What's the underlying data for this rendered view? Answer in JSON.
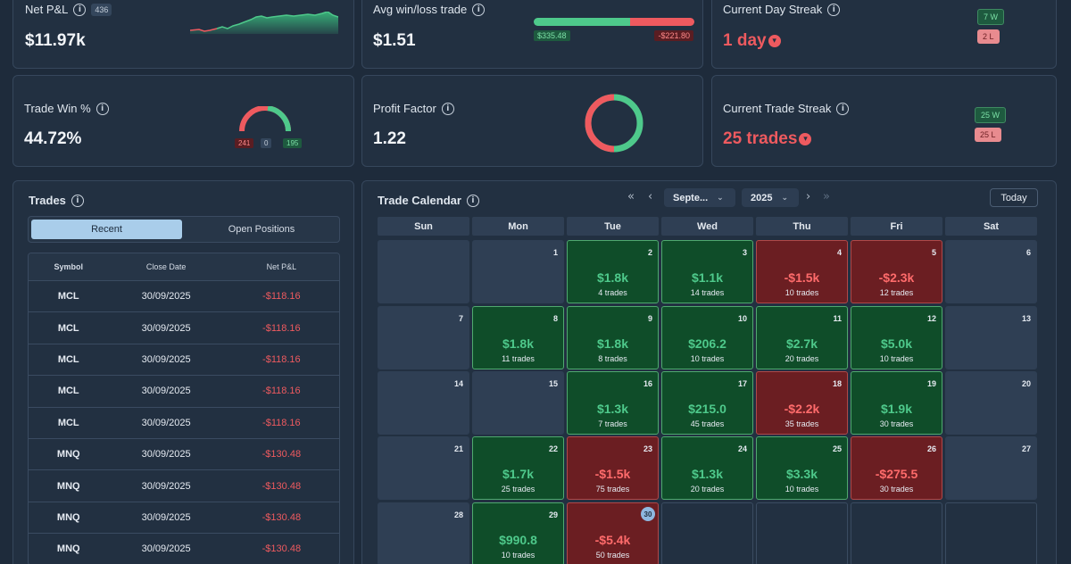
{
  "stats": {
    "net_pnl": {
      "title": "Net P&L",
      "count": "436",
      "value": "$11.97k"
    },
    "avg_winloss": {
      "title": "Avg win/loss trade",
      "value": "$1.51",
      "avg_win": "$335.48",
      "avg_loss": "-$221.80",
      "win_fraction": 0.6
    },
    "day_streak": {
      "title": "Current Day Streak",
      "value": "1 day",
      "wins": "7 W",
      "losses": "2 L"
    },
    "win_pct": {
      "title": "Trade Win %",
      "value": "44.72%",
      "losses": "241",
      "breakeven": "0",
      "wins": "195"
    },
    "profit_factor": {
      "title": "Profit Factor",
      "value": "1.22"
    },
    "trade_streak": {
      "title": "Current Trade Streak",
      "value": "25 trades",
      "wins": "25 W",
      "losses": "25 L"
    }
  },
  "trades": {
    "title": "Trades",
    "tabs": [
      "Recent",
      "Open Positions"
    ],
    "columns": [
      "Symbol",
      "Close Date",
      "Net P&L"
    ],
    "rows": [
      [
        "MCL",
        "30/09/2025",
        "-$118.16"
      ],
      [
        "MCL",
        "30/09/2025",
        "-$118.16"
      ],
      [
        "MCL",
        "30/09/2025",
        "-$118.16"
      ],
      [
        "MCL",
        "30/09/2025",
        "-$118.16"
      ],
      [
        "MCL",
        "30/09/2025",
        "-$118.16"
      ],
      [
        "MNQ",
        "30/09/2025",
        "-$130.48"
      ],
      [
        "MNQ",
        "30/09/2025",
        "-$130.48"
      ],
      [
        "MNQ",
        "30/09/2025",
        "-$130.48"
      ],
      [
        "MNQ",
        "30/09/2025",
        "-$130.48"
      ]
    ]
  },
  "calendar": {
    "title": "Trade Calendar",
    "month": "Septe...",
    "year": "2025",
    "today_label": "Today",
    "weekdays": [
      "Sun",
      "Mon",
      "Tue",
      "Wed",
      "Thu",
      "Fri",
      "Sat"
    ],
    "current_day": "30",
    "weeks": [
      [
        {
          "d": ""
        },
        {
          "d": "1"
        },
        {
          "d": "2",
          "p": "$1.8k",
          "t": "4 trades",
          "s": "pos"
        },
        {
          "d": "3",
          "p": "$1.1k",
          "t": "14 trades",
          "s": "pos"
        },
        {
          "d": "4",
          "p": "-$1.5k",
          "t": "10 trades",
          "s": "neg"
        },
        {
          "d": "5",
          "p": "-$2.3k",
          "t": "12 trades",
          "s": "neg"
        },
        {
          "d": "6"
        }
      ],
      [
        {
          "d": "7"
        },
        {
          "d": "8",
          "p": "$1.8k",
          "t": "11 trades",
          "s": "pos"
        },
        {
          "d": "9",
          "p": "$1.8k",
          "t": "8 trades",
          "s": "pos"
        },
        {
          "d": "10",
          "p": "$206.2",
          "t": "10 trades",
          "s": "pos"
        },
        {
          "d": "11",
          "p": "$2.7k",
          "t": "20 trades",
          "s": "pos"
        },
        {
          "d": "12",
          "p": "$5.0k",
          "t": "10 trades",
          "s": "pos"
        },
        {
          "d": "13"
        }
      ],
      [
        {
          "d": "14"
        },
        {
          "d": "15"
        },
        {
          "d": "16",
          "p": "$1.3k",
          "t": "7 trades",
          "s": "pos"
        },
        {
          "d": "17",
          "p": "$215.0",
          "t": "45 trades",
          "s": "pos"
        },
        {
          "d": "18",
          "p": "-$2.2k",
          "t": "35 trades",
          "s": "neg"
        },
        {
          "d": "19",
          "p": "$1.9k",
          "t": "30 trades",
          "s": "pos"
        },
        {
          "d": "20"
        }
      ],
      [
        {
          "d": "21"
        },
        {
          "d": "22",
          "p": "$1.7k",
          "t": "25 trades",
          "s": "pos"
        },
        {
          "d": "23",
          "p": "-$1.5k",
          "t": "75 trades",
          "s": "neg"
        },
        {
          "d": "24",
          "p": "$1.3k",
          "t": "20 trades",
          "s": "pos"
        },
        {
          "d": "25",
          "p": "$3.3k",
          "t": "10 trades",
          "s": "pos"
        },
        {
          "d": "26",
          "p": "-$275.5",
          "t": "30 trades",
          "s": "neg"
        },
        {
          "d": "27"
        }
      ],
      [
        {
          "d": "28"
        },
        {
          "d": "29",
          "p": "$990.8",
          "t": "10 trades",
          "s": "pos"
        },
        {
          "d": "30",
          "p": "-$5.4k",
          "t": "50 trades",
          "s": "neg"
        },
        {
          "d": "",
          "s": "empty"
        },
        {
          "d": "",
          "s": "empty"
        },
        {
          "d": "",
          "s": "empty"
        },
        {
          "d": "",
          "s": "empty"
        }
      ]
    ]
  },
  "colors": {
    "positive": "#4ec98b",
    "negative": "#ee5a5f",
    "background": "#1e2b3b",
    "card": "#223041"
  },
  "icons": [
    "info-icon",
    "arrow-down-circle-icon",
    "double-chevron-left-icon",
    "chevron-left-icon",
    "chevron-right-icon",
    "double-chevron-right-icon",
    "chevron-down-icon"
  ]
}
